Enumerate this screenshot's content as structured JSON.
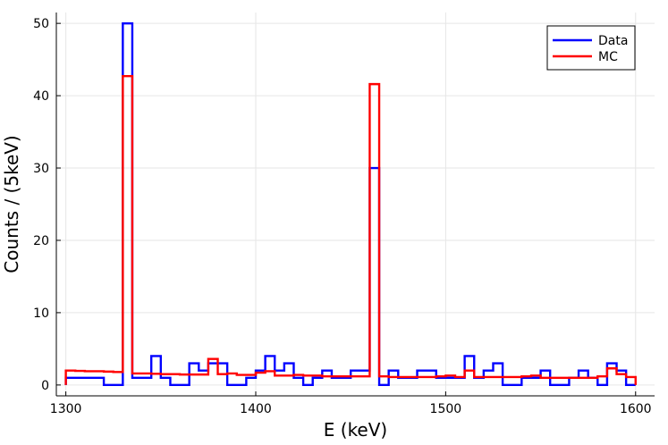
{
  "chart_data": {
    "type": "line",
    "subtype": "step-histogram",
    "xlabel": "E (keV)",
    "ylabel": "Counts / (5keV)",
    "xlim": [
      1295,
      1610
    ],
    "ylim": [
      -1.5,
      51.5
    ],
    "xticks": [
      1300,
      1400,
      1500,
      1600
    ],
    "yticks": [
      0,
      10,
      20,
      30,
      40,
      50
    ],
    "grid": true,
    "legend_position": "top-right",
    "bin_edges": [
      1300,
      1305,
      1310,
      1315,
      1320,
      1325,
      1330,
      1335,
      1340,
      1345,
      1350,
      1355,
      1360,
      1365,
      1370,
      1375,
      1380,
      1385,
      1390,
      1395,
      1400,
      1405,
      1410,
      1415,
      1420,
      1425,
      1430,
      1435,
      1440,
      1445,
      1450,
      1455,
      1460,
      1465,
      1470,
      1475,
      1480,
      1485,
      1490,
      1495,
      1500,
      1505,
      1510,
      1515,
      1520,
      1525,
      1530,
      1535,
      1540,
      1545,
      1550,
      1555,
      1560,
      1565,
      1570,
      1575,
      1580,
      1585,
      1590,
      1595,
      1600
    ],
    "series": [
      {
        "name": "Data",
        "color": "#0000ff",
        "values": [
          1,
          1,
          1,
          1,
          0,
          0,
          50,
          1,
          1,
          4,
          1,
          0,
          0,
          3,
          2,
          3,
          3,
          0,
          0,
          1,
          2,
          4,
          2,
          3,
          1,
          0,
          1,
          2,
          1,
          1,
          2,
          2,
          30,
          0,
          2,
          1,
          1,
          2,
          2,
          1,
          1,
          1,
          4,
          1,
          2,
          3,
          0,
          0,
          1,
          1,
          2,
          0,
          0,
          1,
          2,
          1,
          0,
          3,
          2,
          0
        ]
      },
      {
        "name": "MC",
        "color": "#ff0000",
        "values": [
          2.0,
          1.95,
          1.9,
          1.9,
          1.85,
          1.8,
          42.7,
          1.6,
          1.6,
          1.55,
          1.5,
          1.5,
          1.45,
          1.45,
          1.45,
          3.6,
          1.5,
          1.6,
          1.4,
          1.4,
          1.7,
          1.9,
          1.3,
          1.3,
          1.4,
          1.3,
          1.3,
          1.2,
          1.2,
          1.2,
          1.2,
          1.2,
          41.6,
          1.2,
          1.1,
          1.1,
          1.1,
          1.1,
          1.1,
          1.2,
          1.3,
          1.1,
          2.0,
          1.1,
          1.1,
          1.1,
          1.1,
          1.1,
          1.2,
          1.3,
          1.0,
          1.0,
          1.0,
          1.0,
          1.0,
          1.0,
          1.2,
          2.3,
          1.5,
          1.1
        ]
      }
    ]
  }
}
